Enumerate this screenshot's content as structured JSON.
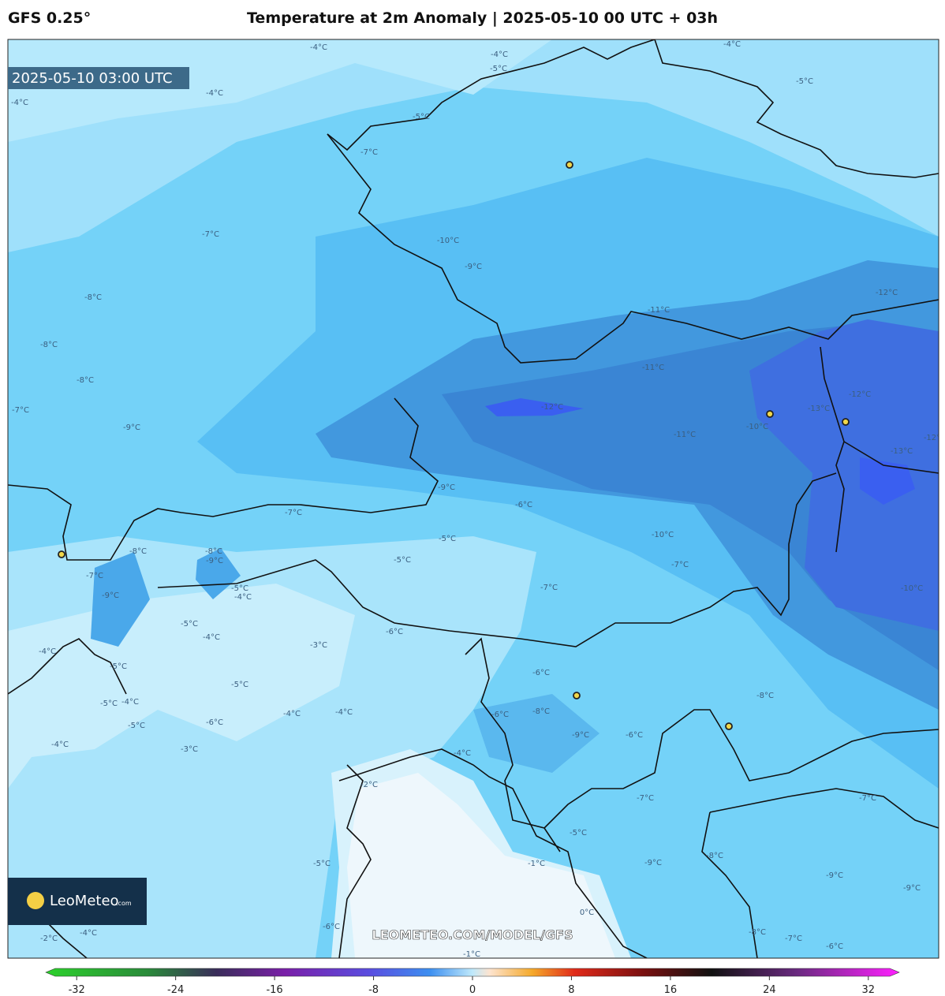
{
  "header": {
    "model": "GFS 0.25°",
    "title": "Temperature at 2m Anomaly | 2025-05-10 00 UTC + 03h"
  },
  "map": {
    "valid_time": "2025-05-10 03:00 UTC",
    "logo": "LeoMeteo",
    "logo_suffix": ".com",
    "watermark": "LEOMETEO.COM/MODEL/GFS",
    "contour_labels": [
      "-4°C",
      "-4°C",
      "-5°C",
      "-4°C",
      "-5°C",
      "-4°C",
      "-5°C",
      "-4°C",
      "-7°C",
      "-7°C",
      "-10°C",
      "-9°C",
      "-8°C",
      "-12°C",
      "-11°C",
      "-8°C",
      "-8°C",
      "-11°C",
      "-12°C",
      "-12°C",
      "-7°C",
      "-13°C",
      "-10°C",
      "-9°C",
      "-11°C",
      "-13°C",
      "-12°C",
      "-9°C",
      "-6°C",
      "-7°C",
      "-5°C",
      "-10°C",
      "-8°C",
      "-8°C",
      "-9°C",
      "-5°C",
      "-7°C",
      "-7°C",
      "-5°C",
      "-4°C",
      "-9°C",
      "-7°C",
      "-10°C",
      "-5°C",
      "-6°C",
      "-4°C",
      "-4°C",
      "-3°C",
      "-6°C",
      "-5°C",
      "-5°C",
      "-8°C",
      "-5°C",
      "-4°C",
      "-8°C",
      "-4°C",
      "-4°C",
      "-6°C",
      "-5°C",
      "-6°C",
      "-9°C",
      "-6°C",
      "-4°C",
      "-3°C",
      "-4°C",
      "-2°C",
      "-7°C",
      "-7°C",
      "-5°C",
      "-5°C",
      "-1°C",
      "-9°C",
      "-8°C",
      "-9°C",
      "-9°C",
      "0°C",
      "-6°C",
      "-4°C",
      "-2°C",
      "-8°C",
      "-7°C",
      "-6°C",
      "-1°C"
    ]
  },
  "colorbar": {
    "lim": [
      -34.5,
      34.5
    ],
    "ticks": [
      -32,
      -24,
      -16,
      -8,
      0,
      8,
      16,
      24,
      32
    ]
  }
}
